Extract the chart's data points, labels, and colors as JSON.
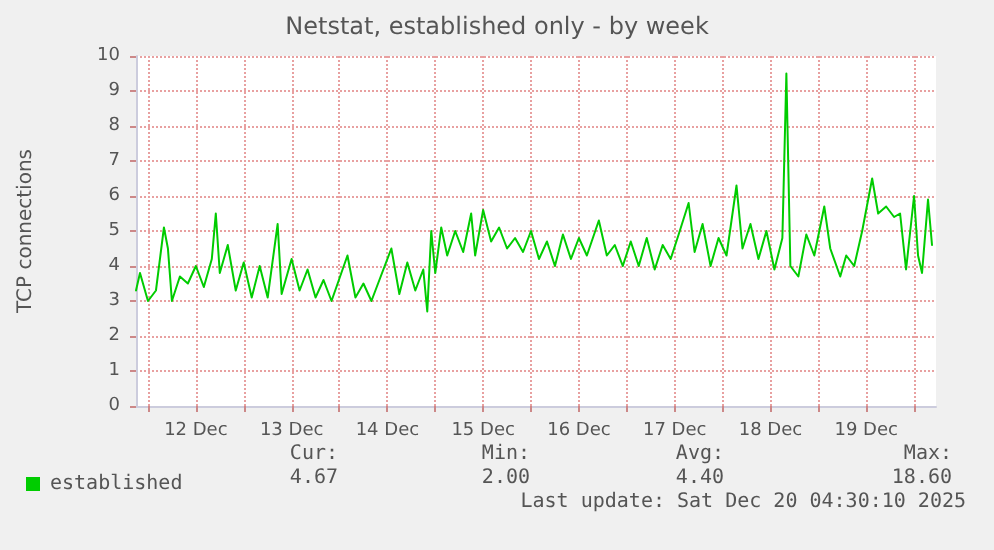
{
  "chart_data": {
    "type": "line",
    "title": "Netstat, established only - by week",
    "ylabel": "TCP connections",
    "xlim": [
      "2025-12-11T21:00",
      "2025-12-20T05:30"
    ],
    "xticks": [
      {
        "value": "2025-12-12T00:00",
        "label": null
      },
      {
        "value": "2025-12-12T12:00",
        "label": "12 Dec"
      },
      {
        "value": "2025-12-13T00:00",
        "label": null
      },
      {
        "value": "2025-12-13T12:00",
        "label": "13 Dec"
      },
      {
        "value": "2025-12-14T00:00",
        "label": null
      },
      {
        "value": "2025-12-14T12:00",
        "label": "14 Dec"
      },
      {
        "value": "2025-12-15T00:00",
        "label": null
      },
      {
        "value": "2025-12-15T12:00",
        "label": "15 Dec"
      },
      {
        "value": "2025-12-16T00:00",
        "label": null
      },
      {
        "value": "2025-12-16T12:00",
        "label": "16 Dec"
      },
      {
        "value": "2025-12-17T00:00",
        "label": null
      },
      {
        "value": "2025-12-17T12:00",
        "label": "17 Dec"
      },
      {
        "value": "2025-12-18T00:00",
        "label": null
      },
      {
        "value": "2025-12-18T12:00",
        "label": "18 Dec"
      },
      {
        "value": "2025-12-19T00:00",
        "label": null
      },
      {
        "value": "2025-12-19T12:00",
        "label": "19 Dec"
      },
      {
        "value": "2025-12-20T00:00",
        "label": null
      }
    ],
    "ylim": [
      0,
      10
    ],
    "yticks": [
      0,
      1,
      2,
      3,
      4,
      5,
      6,
      7,
      8,
      9,
      10
    ],
    "grid": true,
    "legend": "bottom left",
    "marker": "none",
    "line_style": "solid",
    "series": [
      {
        "name": "established",
        "color": "#00cc00",
        "x": [
          "2025-12-11T21:00",
          "2025-12-11T22:00",
          "2025-12-12T00:00",
          "2025-12-12T02:00",
          "2025-12-12T04:00",
          "2025-12-12T05:00",
          "2025-12-12T06:00",
          "2025-12-12T08:00",
          "2025-12-12T10:00",
          "2025-12-12T12:00",
          "2025-12-12T14:00",
          "2025-12-12T16:00",
          "2025-12-12T17:00",
          "2025-12-12T18:00",
          "2025-12-12T20:00",
          "2025-12-12T22:00",
          "2025-12-13T00:00",
          "2025-12-13T02:00",
          "2025-12-13T04:00",
          "2025-12-13T06:00",
          "2025-12-13T08:30",
          "2025-12-13T09:30",
          "2025-12-13T12:00",
          "2025-12-13T14:00",
          "2025-12-13T16:00",
          "2025-12-13T18:00",
          "2025-12-13T20:00",
          "2025-12-13T22:00",
          "2025-12-14T02:00",
          "2025-12-14T04:00",
          "2025-12-14T06:00",
          "2025-12-14T08:00",
          "2025-12-14T10:00",
          "2025-12-14T13:00",
          "2025-12-14T15:00",
          "2025-12-14T17:00",
          "2025-12-14T19:00",
          "2025-12-14T21:00",
          "2025-12-14T22:00",
          "2025-12-14T23:00",
          "2025-12-15T00:00",
          "2025-12-15T01:30",
          "2025-12-15T03:00",
          "2025-12-15T05:00",
          "2025-12-15T07:00",
          "2025-12-15T09:00",
          "2025-12-15T10:00",
          "2025-12-15T12:00",
          "2025-12-15T14:00",
          "2025-12-15T16:00",
          "2025-12-15T18:00",
          "2025-12-15T20:00",
          "2025-12-15T22:00",
          "2025-12-16T00:00",
          "2025-12-16T02:00",
          "2025-12-16T04:00",
          "2025-12-16T06:00",
          "2025-12-16T08:00",
          "2025-12-16T10:00",
          "2025-12-16T12:00",
          "2025-12-16T14:00",
          "2025-12-16T17:00",
          "2025-12-16T19:00",
          "2025-12-16T21:00",
          "2025-12-16T23:00",
          "2025-12-17T01:00",
          "2025-12-17T03:00",
          "2025-12-17T05:00",
          "2025-12-17T07:00",
          "2025-12-17T09:00",
          "2025-12-17T11:00",
          "2025-12-17T13:00",
          "2025-12-17T15:30",
          "2025-12-17T17:00",
          "2025-12-17T19:00",
          "2025-12-17T21:00",
          "2025-12-17T23:00",
          "2025-12-18T01:00",
          "2025-12-18T03:30",
          "2025-12-18T05:00",
          "2025-12-18T07:00",
          "2025-12-18T09:00",
          "2025-12-18T11:00",
          "2025-12-18T13:00",
          "2025-12-18T15:00",
          "2025-12-18T16:00",
          "2025-12-18T17:00",
          "2025-12-18T19:00",
          "2025-12-18T21:00",
          "2025-12-18T23:00",
          "2025-12-19T01:30",
          "2025-12-19T03:00",
          "2025-12-19T05:30",
          "2025-12-19T07:00",
          "2025-12-19T09:00",
          "2025-12-19T11:00",
          "2025-12-19T13:30",
          "2025-12-19T15:00",
          "2025-12-19T17:00",
          "2025-12-19T19:00",
          "2025-12-19T20:30",
          "2025-12-19T22:00",
          "2025-12-20T00:00",
          "2025-12-20T01:00",
          "2025-12-20T02:00",
          "2025-12-20T03:30",
          "2025-12-20T04:30"
        ],
        "values": [
          3.3,
          3.8,
          3.0,
          3.3,
          5.1,
          4.5,
          3.0,
          3.7,
          3.5,
          4.0,
          3.4,
          4.2,
          5.5,
          3.8,
          4.6,
          3.3,
          4.1,
          3.1,
          4.0,
          3.1,
          5.2,
          3.2,
          4.2,
          3.3,
          3.9,
          3.1,
          3.6,
          3.0,
          4.3,
          3.1,
          3.5,
          3.0,
          3.6,
          4.5,
          3.2,
          4.1,
          3.3,
          3.9,
          2.7,
          5.0,
          3.8,
          5.1,
          4.3,
          5.0,
          4.4,
          5.5,
          4.3,
          5.6,
          4.7,
          5.1,
          4.5,
          4.8,
          4.4,
          5.0,
          4.2,
          4.7,
          4.0,
          4.9,
          4.2,
          4.8,
          4.3,
          5.3,
          4.3,
          4.6,
          4.0,
          4.7,
          4.0,
          4.8,
          3.9,
          4.6,
          4.2,
          4.9,
          5.8,
          4.4,
          5.2,
          4.0,
          4.8,
          4.3,
          6.3,
          4.5,
          5.2,
          4.2,
          5.0,
          3.9,
          4.8,
          9.5,
          4.0,
          3.7,
          4.9,
          4.3,
          5.7,
          4.5,
          3.7,
          4.3,
          4.0,
          5.0,
          6.5,
          5.5,
          5.7,
          5.4,
          5.5,
          3.9,
          6.0,
          4.3,
          3.8,
          5.9,
          4.6
        ]
      }
    ],
    "annotations": [
      "Cur:",
      "4.67",
      "Min:",
      "2.00",
      "Avg:",
      "4.40",
      "Max:",
      "18.60",
      "Last update: Sat Dec 20 04:30:10 2025"
    ]
  }
}
